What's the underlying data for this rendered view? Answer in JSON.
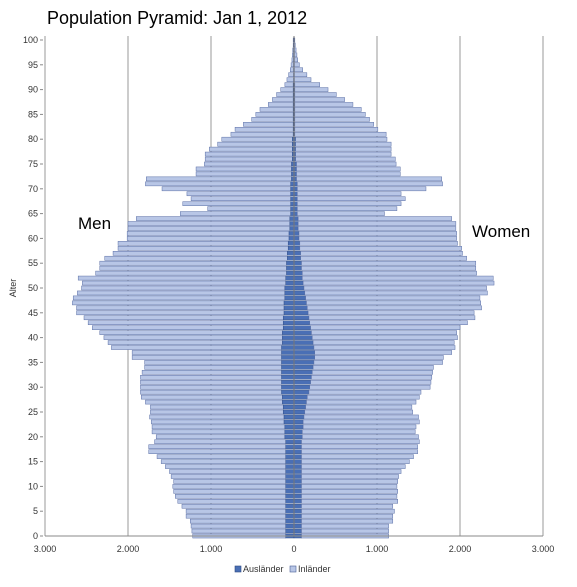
{
  "chart_data": {
    "type": "bar",
    "orientation": "horizontal",
    "title": "Population Pyramid: Jan 1, 2012",
    "ylabel": "Alter",
    "left_label": "Men",
    "right_label": "Women",
    "xlim": [
      -3000,
      3000
    ],
    "ylim": [
      0,
      100
    ],
    "x_ticks": [
      -3000,
      -2000,
      -1000,
      0,
      1000,
      2000,
      3000
    ],
    "x_tick_labels": [
      "3.000",
      "2.000",
      "1.000",
      "0",
      "1.000",
      "2.000",
      "3.000"
    ],
    "y_ticks": [
      0,
      5,
      10,
      15,
      20,
      25,
      30,
      35,
      40,
      45,
      50,
      55,
      60,
      65,
      70,
      75,
      80,
      85,
      90,
      95,
      100
    ],
    "y_tick_labels": [
      "0",
      "5",
      "10",
      "15",
      "20",
      "25",
      "30",
      "35",
      "40",
      "45",
      "50",
      "55",
      "60",
      "65",
      "70",
      "75",
      "80",
      "85",
      "90",
      "95",
      "100"
    ],
    "grid": "vertical",
    "stacked": true,
    "legend_position": "bottom",
    "ages": [
      0,
      1,
      2,
      3,
      4,
      5,
      6,
      7,
      8,
      9,
      10,
      11,
      12,
      13,
      14,
      15,
      16,
      17,
      18,
      19,
      20,
      21,
      22,
      23,
      24,
      25,
      26,
      27,
      28,
      29,
      30,
      31,
      32,
      33,
      34,
      35,
      36,
      37,
      38,
      39,
      40,
      41,
      42,
      43,
      44,
      45,
      46,
      47,
      48,
      49,
      50,
      51,
      52,
      53,
      54,
      55,
      56,
      57,
      58,
      59,
      60,
      61,
      62,
      63,
      64,
      65,
      66,
      67,
      68,
      69,
      70,
      71,
      72,
      73,
      74,
      75,
      76,
      77,
      78,
      79,
      80,
      81,
      82,
      83,
      84,
      85,
      86,
      87,
      88,
      89,
      90,
      91,
      92,
      93,
      94,
      95,
      96,
      97,
      98,
      99,
      100
    ],
    "series": [
      {
        "name": "Ausländer",
        "color": "#4a6fb5",
        "men": [
          100,
          100,
          100,
          100,
          100,
          100,
          100,
          100,
          100,
          100,
          100,
          100,
          100,
          100,
          100,
          100,
          100,
          100,
          100,
          100,
          110,
          110,
          110,
          120,
          120,
          130,
          130,
          140,
          140,
          150,
          150,
          150,
          150,
          150,
          150,
          150,
          150,
          150,
          150,
          140,
          140,
          140,
          130,
          130,
          130,
          120,
          120,
          120,
          110,
          110,
          110,
          100,
          100,
          90,
          90,
          90,
          80,
          80,
          70,
          70,
          60,
          60,
          50,
          50,
          50,
          40,
          40,
          40,
          40,
          40,
          40,
          40,
          30,
          30,
          30,
          30,
          20,
          20,
          20,
          20,
          20,
          10,
          10,
          10,
          10,
          10,
          10,
          10,
          10,
          10,
          10,
          10,
          5,
          5,
          5,
          5,
          5,
          5,
          5,
          5,
          5
        ],
        "women": [
          90,
          90,
          90,
          90,
          90,
          90,
          90,
          90,
          90,
          90,
          90,
          90,
          90,
          90,
          90,
          90,
          90,
          90,
          90,
          90,
          100,
          100,
          110,
          110,
          120,
          130,
          140,
          150,
          160,
          180,
          190,
          200,
          210,
          220,
          230,
          240,
          250,
          250,
          240,
          230,
          220,
          210,
          200,
          190,
          180,
          170,
          160,
          150,
          140,
          130,
          120,
          110,
          100,
          100,
          90,
          90,
          80,
          80,
          70,
          70,
          60,
          60,
          50,
          50,
          50,
          40,
          40,
          40,
          40,
          40,
          40,
          40,
          30,
          30,
          30,
          30,
          20,
          20,
          20,
          20,
          20,
          10,
          10,
          10,
          10,
          10,
          10,
          10,
          10,
          10,
          10,
          10,
          5,
          5,
          5,
          5,
          5,
          5,
          5,
          5,
          5
        ]
      },
      {
        "name": "Inländer",
        "color": "#b8c6e6",
        "men": [
          1120,
          1130,
          1140,
          1150,
          1200,
          1200,
          1250,
          1300,
          1330,
          1350,
          1360,
          1350,
          1380,
          1400,
          1450,
          1500,
          1550,
          1650,
          1650,
          1580,
          1550,
          1600,
          1600,
          1600,
          1620,
          1600,
          1600,
          1650,
          1700,
          1700,
          1700,
          1700,
          1700,
          1680,
          1650,
          1650,
          1800,
          1800,
          2050,
          2100,
          2150,
          2200,
          2300,
          2350,
          2400,
          2500,
          2500,
          2550,
          2550,
          2500,
          2450,
          2450,
          2500,
          2300,
          2250,
          2250,
          2200,
          2100,
          2050,
          2050,
          1950,
          1950,
          1950,
          1950,
          1850,
          1330,
          1000,
          1300,
          1200,
          1250,
          1550,
          1750,
          1750,
          1150,
          1150,
          1050,
          1050,
          1050,
          1000,
          900,
          850,
          750,
          700,
          600,
          500,
          450,
          400,
          300,
          250,
          200,
          150,
          100,
          80,
          60,
          40,
          30,
          20,
          15,
          10,
          5,
          5
        ],
        "women": [
          1050,
          1050,
          1050,
          1100,
          1100,
          1120,
          1100,
          1160,
          1150,
          1160,
          1150,
          1160,
          1170,
          1200,
          1250,
          1300,
          1350,
          1400,
          1400,
          1420,
          1400,
          1360,
          1360,
          1400,
          1380,
          1300,
          1280,
          1320,
          1350,
          1350,
          1450,
          1450,
          1450,
          1450,
          1450,
          1550,
          1550,
          1650,
          1700,
          1700,
          1750,
          1750,
          1800,
          1900,
          2000,
          2000,
          2100,
          2100,
          2100,
          2200,
          2200,
          2300,
          2300,
          2100,
          2100,
          2100,
          2000,
          1950,
          1950,
          1900,
          1900,
          1900,
          1900,
          1900,
          1850,
          1050,
          1200,
          1250,
          1300,
          1250,
          1550,
          1750,
          1750,
          1250,
          1250,
          1200,
          1200,
          1150,
          1150,
          1150,
          1100,
          1100,
          1000,
          950,
          900,
          850,
          800,
          700,
          600,
          500,
          400,
          300,
          200,
          150,
          100,
          60,
          40,
          30,
          20,
          10,
          5
        ]
      }
    ]
  }
}
